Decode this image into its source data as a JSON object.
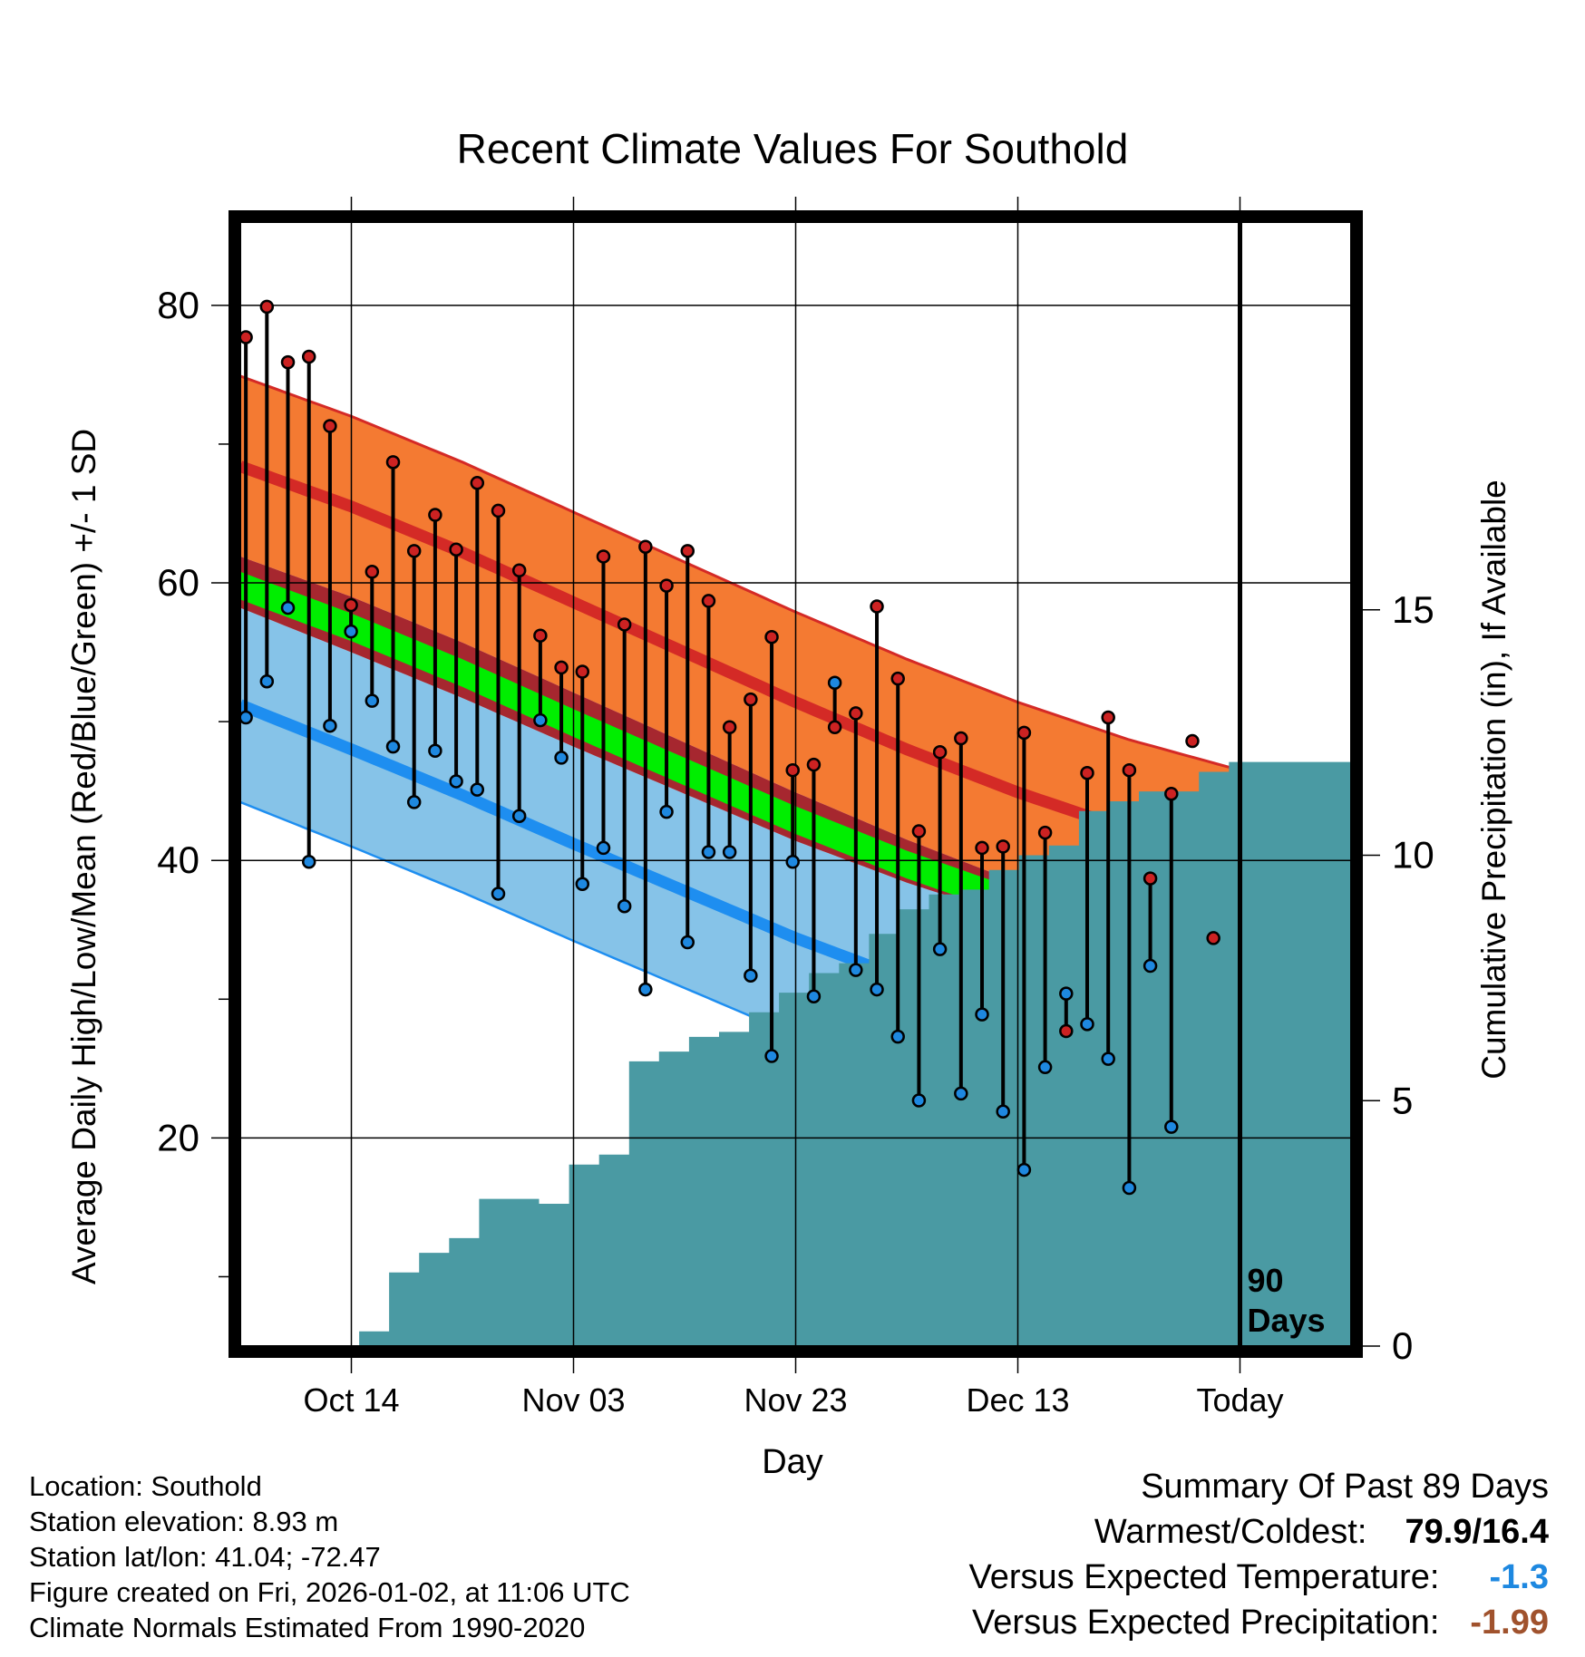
{
  "chart_data": {
    "type": "line",
    "title": "Recent Climate Values For Southold",
    "xlabel": "Day",
    "ylabel": "Average Daily High/Low/Mean (Red/Blue/Green) +/- 1 SD",
    "y2label": "Cumulative Precipitation (in), If Available",
    "ylim": [
      5,
      86
    ],
    "y2lim": [
      0,
      22.9
    ],
    "xlim": [
      0,
      100
    ],
    "today_day": 90,
    "today_label": "90\nDays",
    "x_ticks": [
      {
        "day": 10,
        "label": "Oct 14"
      },
      {
        "day": 30,
        "label": "Nov 03"
      },
      {
        "day": 50,
        "label": "Nov 23"
      },
      {
        "day": 70,
        "label": "Dec 13"
      },
      {
        "day": 90,
        "label": "Today"
      }
    ],
    "y_ticks": [
      {
        "value": 20,
        "label": "20"
      },
      {
        "value": 40,
        "label": "40"
      },
      {
        "value": 60,
        "label": "60"
      },
      {
        "value": 80,
        "label": "80"
      }
    ],
    "y_minor_ticks": [
      10,
      30,
      50,
      70
    ],
    "y2_ticks": [
      {
        "value": 0,
        "label": "0"
      },
      {
        "value": 5,
        "label": "5"
      },
      {
        "value": 10,
        "label": "10"
      },
      {
        "value": 15,
        "label": "15"
      }
    ],
    "normals": {
      "days": [
        0,
        10,
        20,
        30,
        40,
        50,
        60,
        70,
        80,
        90,
        100
      ],
      "high_mean": [
        68.4,
        65.5,
        62.2,
        58.6,
        55.0,
        51.4,
        48.0,
        44.9,
        42.2,
        40.0,
        38.5
      ],
      "high_sd": 6.5,
      "low_mean": [
        51.2,
        48.0,
        44.7,
        41.2,
        37.8,
        34.4,
        31.4,
        28.8,
        26.6,
        24.9,
        23.7
      ],
      "low_sd": 7.0,
      "mean": [
        59.8,
        56.8,
        53.5,
        49.9,
        46.4,
        42.9,
        39.7,
        36.9,
        34.4,
        32.5,
        31.1
      ],
      "mean_sd": 1.0
    },
    "series": [
      {
        "name": "High",
        "values": [
          77.7,
          79.9,
          75.9,
          76.3,
          71.3,
          58.4,
          60.8,
          68.7,
          62.3,
          64.9,
          62.4,
          67.2,
          65.2,
          60.9,
          56.2,
          53.9,
          53.6,
          61.9,
          57.0,
          62.6,
          59.8,
          62.3,
          58.7,
          49.6,
          51.6,
          56.1,
          46.5,
          46.9,
          49.6,
          50.6,
          58.3,
          53.1,
          42.1,
          47.8,
          48.8,
          40.9,
          41.0,
          49.2,
          42.0,
          27.7,
          46.3,
          50.3,
          46.5,
          38.7,
          44.8,
          48.6,
          34.4
        ]
      },
      {
        "name": "Low",
        "values": [
          50.3,
          52.9,
          58.2,
          39.9,
          49.7,
          56.5,
          51.5,
          48.2,
          44.2,
          47.9,
          45.7,
          45.1,
          37.6,
          43.2,
          50.1,
          47.4,
          38.3,
          40.9,
          36.7,
          30.7,
          43.5,
          34.1,
          40.6,
          40.6,
          31.7,
          25.9,
          39.9,
          30.2,
          52.8,
          32.1,
          30.7,
          27.3,
          22.7,
          33.6,
          23.2,
          28.9,
          21.9,
          17.7,
          25.1,
          30.4,
          28.2,
          25.7,
          16.4,
          32.4,
          20.8
        ]
      },
      {
        "name": "Precipitation",
        "values": [
          0,
          0.3,
          1.5,
          1.9,
          2.2,
          3.0,
          3.0,
          2.9,
          3.7,
          3.9,
          5.8,
          6.0,
          6.3,
          6.4,
          6.8,
          7.2,
          7.6,
          7.8,
          8.4,
          8.9,
          9.2,
          9.3,
          9.7,
          10.0,
          10.2,
          10.9,
          11.1,
          11.3,
          11.3,
          11.7,
          11.9,
          11.9,
          11.9,
          11.9
        ]
      }
    ]
  },
  "info": {
    "location": "Location: Southold",
    "elevation": "Station elevation: 8.93 m",
    "latlon": "Station lat/lon: 41.04; -72.47",
    "created": "Figure created on Fri, 2026-01-02, at 11:06 UTC",
    "normals": "Climate Normals Estimated From 1990-2020"
  },
  "summary": {
    "title": "Summary Of Past 89 Days",
    "warm_cold_label": "Warmest/Coldest:",
    "warm_cold_value": "79.9/16.4",
    "temp_label": "Versus Expected Temperature:",
    "temp_value": "-1.3",
    "precip_label": "Versus Expected Precipitation:",
    "precip_value": "-1.99"
  },
  "colors": {
    "high_band": "#f47a32",
    "high_line": "#d42a26",
    "low_band": "#86c3e8",
    "low_line": "#1e8ef0",
    "mean_band": "#00ee00",
    "overlap": "#9c1018",
    "precip": "#4a9aa3",
    "high_dot": "#cc2222",
    "low_dot": "#1e88e0",
    "temp_value": "#1e88e0",
    "precip_value": "#a0522d"
  }
}
